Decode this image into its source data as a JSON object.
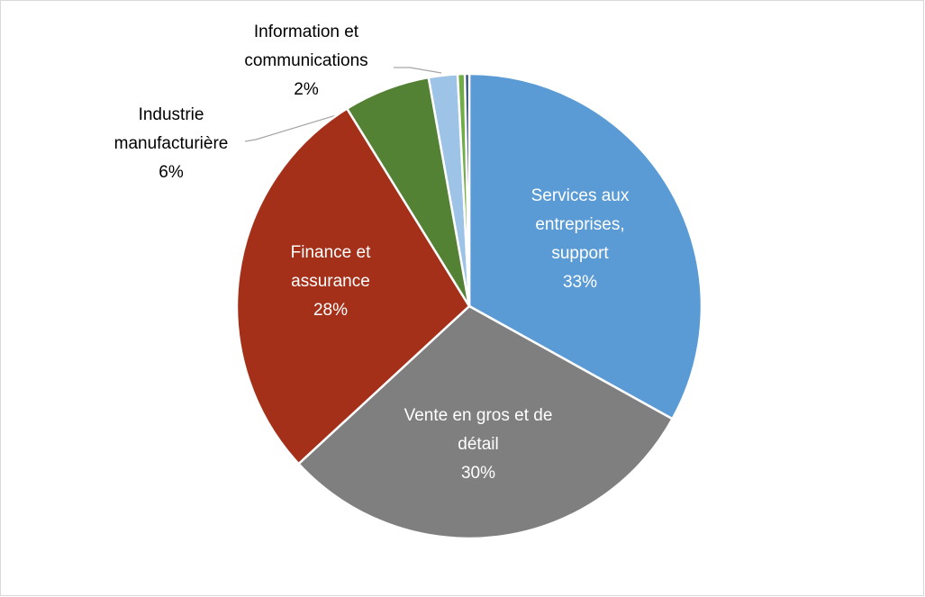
{
  "chart_data": {
    "type": "pie",
    "categories": [
      "Services aux entreprises, support",
      "Vente en gros et de détail",
      "Finance et assurance",
      "Industrie manufacturière",
      "Information et communications",
      null,
      null
    ],
    "values": [
      33,
      30,
      28,
      6,
      2,
      0.5,
      0.3
    ],
    "value_labels": [
      "33%",
      "30%",
      "28%",
      "6%",
      "2%",
      null,
      null
    ],
    "colors": [
      "#5b9bd5",
      "#7f7f7f",
      "#a5301a",
      "#548235",
      "#9dc3e6",
      "#70ad47",
      "#264478"
    ]
  }
}
